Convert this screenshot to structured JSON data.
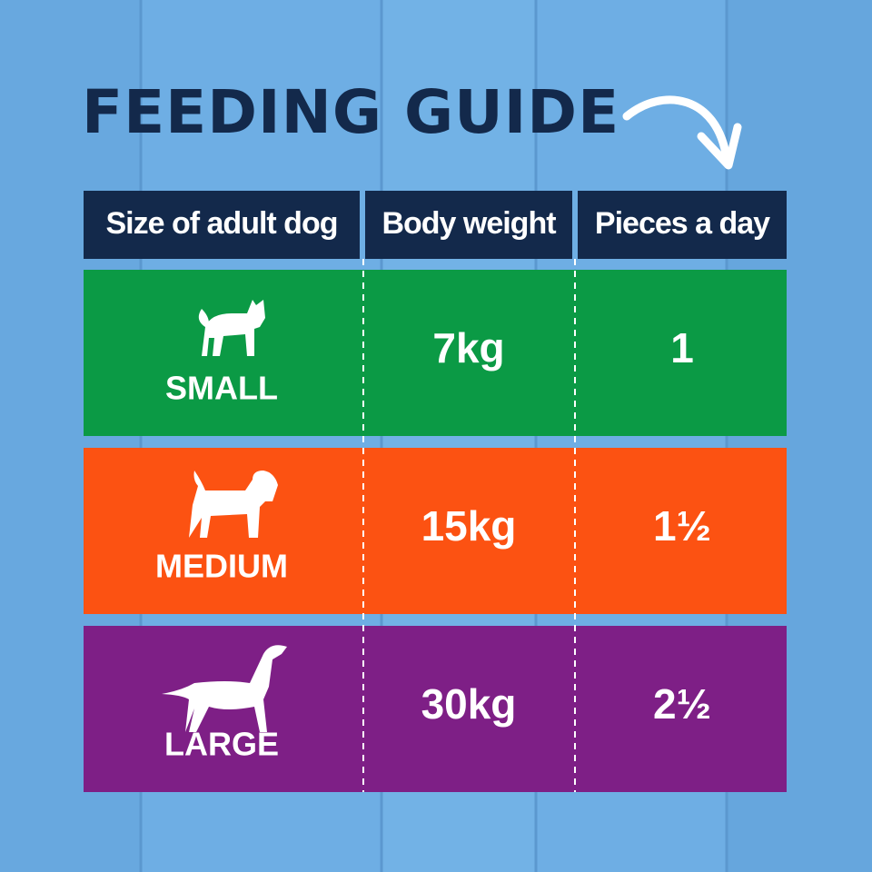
{
  "header": {
    "title": "FEEDING GUIDE"
  },
  "table": {
    "columns": [
      "Size of adult dog",
      "Body weight",
      "Pieces a day"
    ],
    "rows": [
      [
        "SMALL",
        "7kg",
        "1"
      ],
      [
        "MEDIUM",
        "15kg",
        "1½"
      ],
      [
        "LARGE",
        "30kg",
        "2½"
      ]
    ]
  }
}
